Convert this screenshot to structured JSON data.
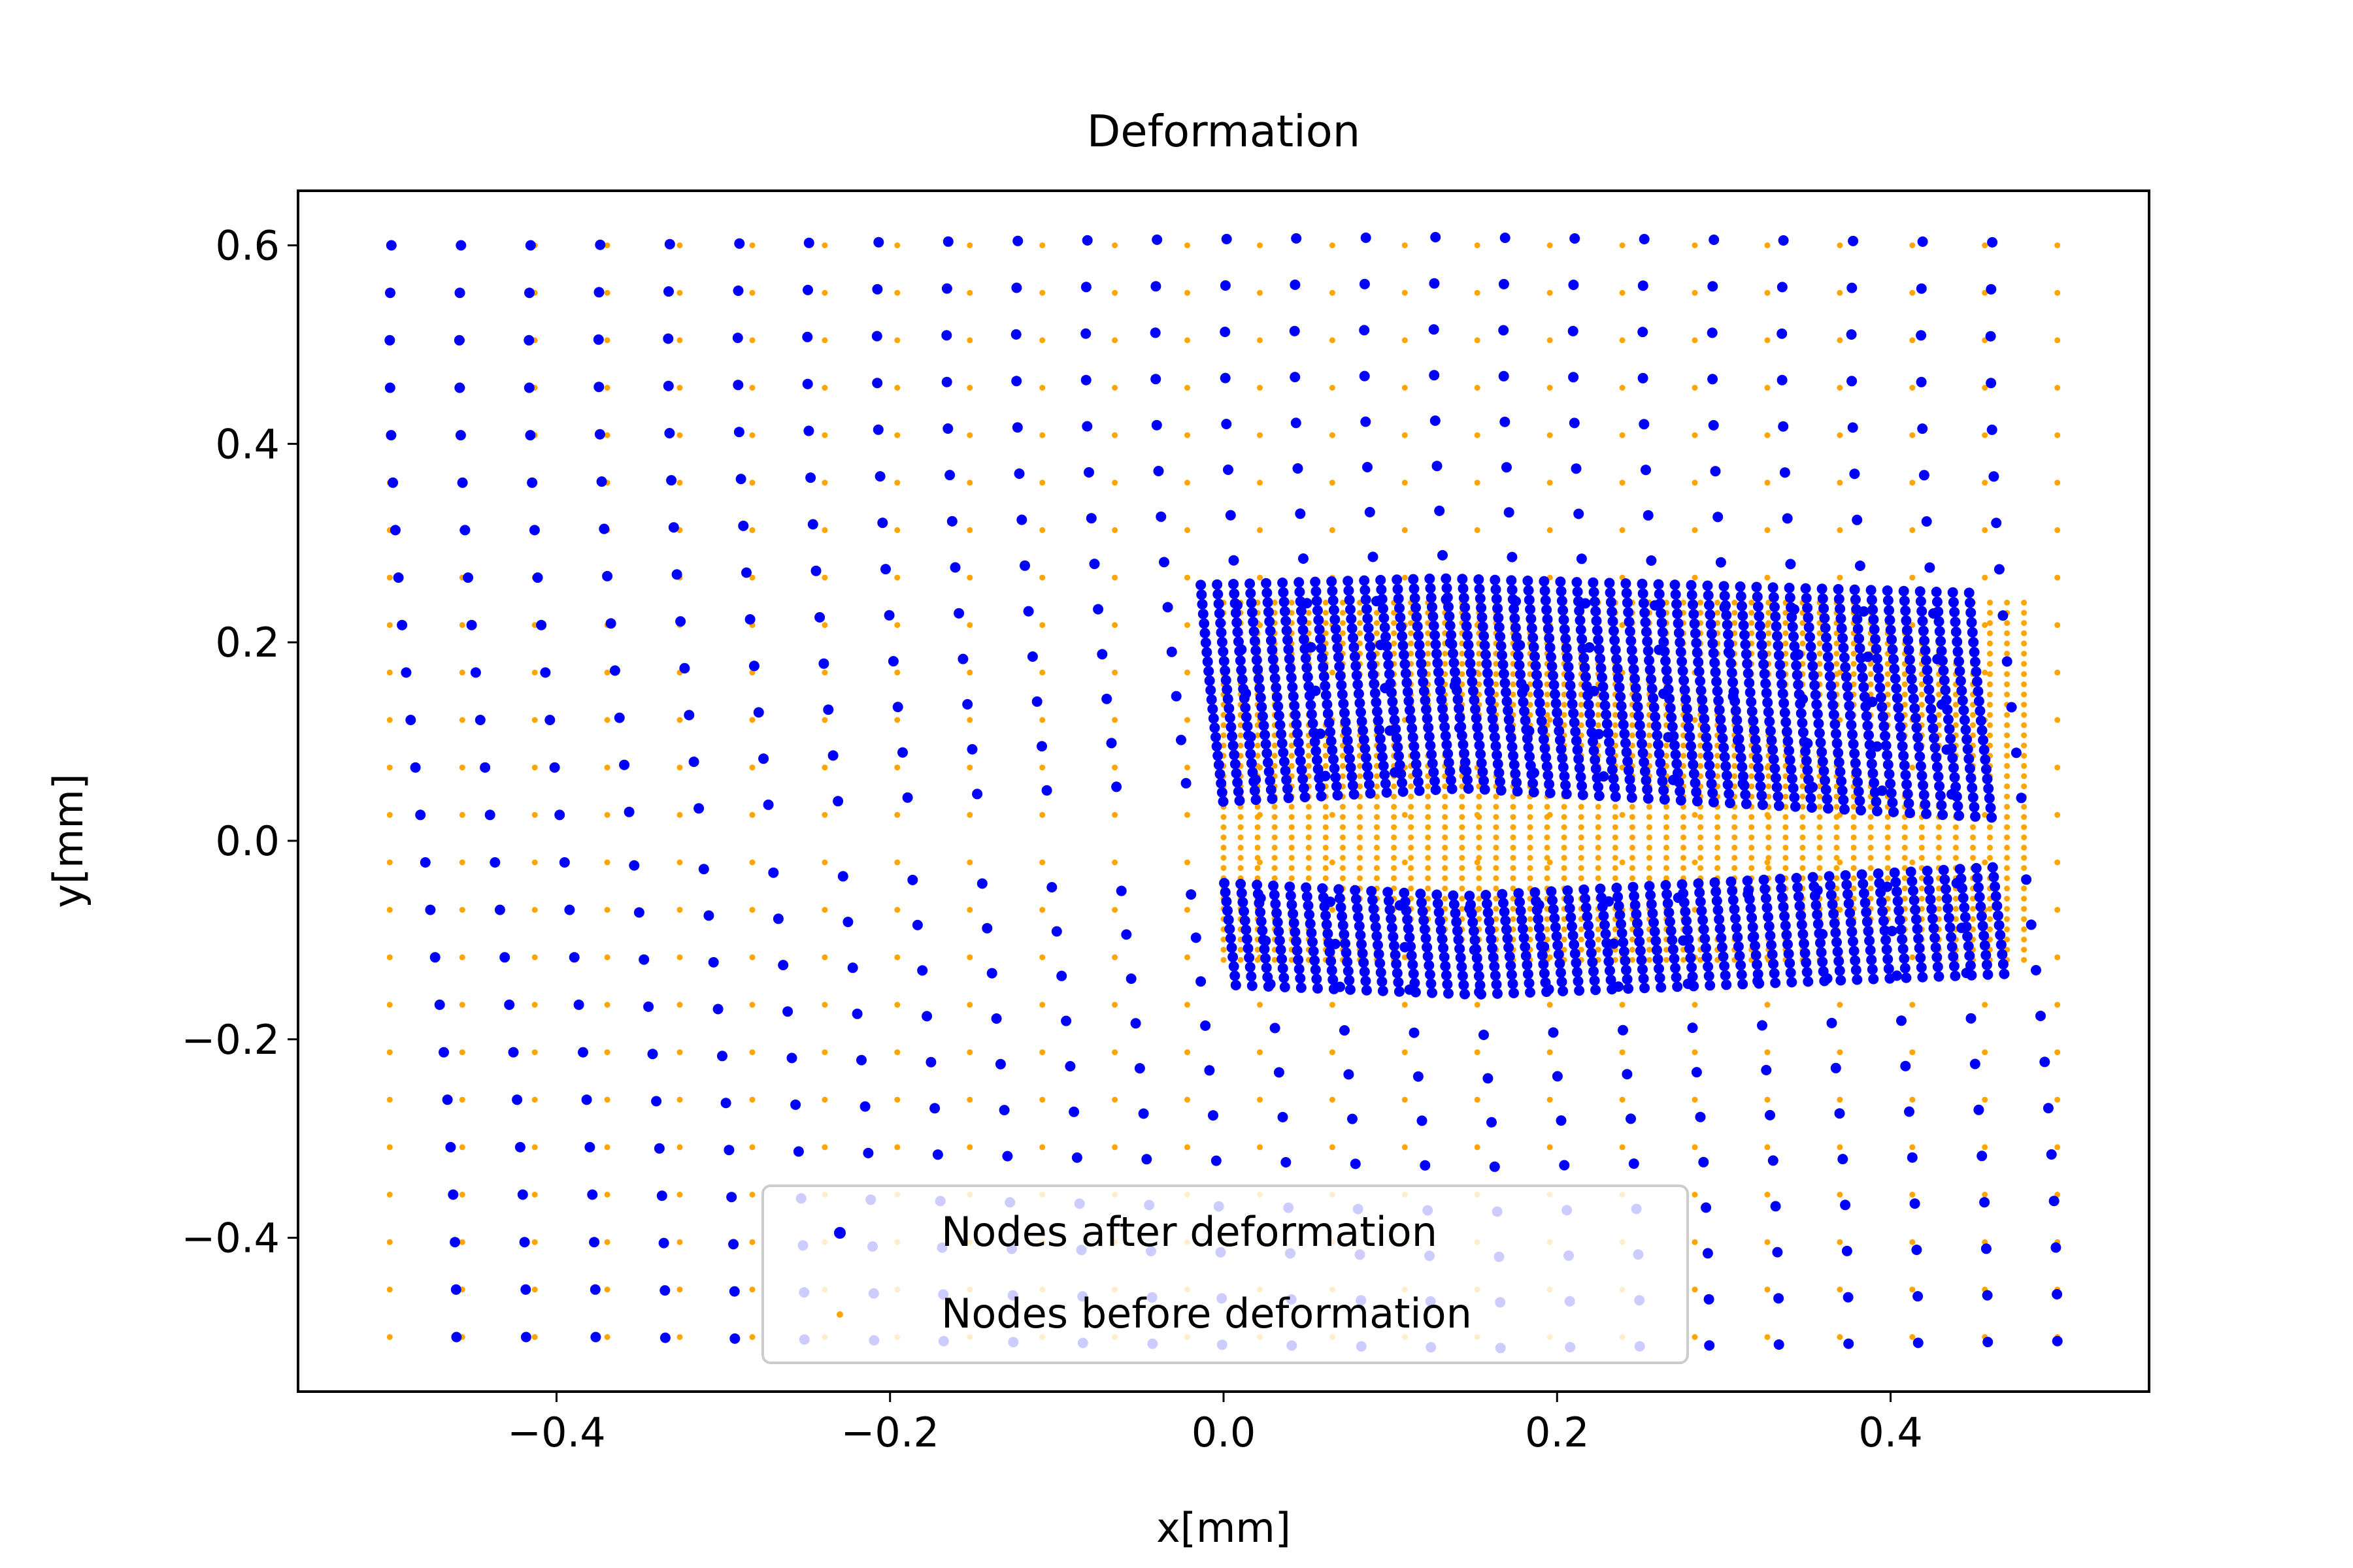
{
  "chart_data": {
    "type": "scatter",
    "title": "Deformation",
    "xlabel": "x[mm]",
    "ylabel": "y[mm]",
    "xlim": [
      -0.555,
      0.555
    ],
    "ylim": [
      -0.555,
      0.655
    ],
    "xticks": [
      {
        "value": -0.4,
        "label": "−0.4"
      },
      {
        "value": -0.2,
        "label": "−0.2"
      },
      {
        "value": 0.0,
        "label": "0.0"
      },
      {
        "value": 0.2,
        "label": "0.2"
      },
      {
        "value": 0.4,
        "label": "0.4"
      }
    ],
    "yticks": [
      {
        "value": -0.4,
        "label": "−0.4"
      },
      {
        "value": -0.2,
        "label": "−0.2"
      },
      {
        "value": 0.0,
        "label": "0.0"
      },
      {
        "value": 0.2,
        "label": "0.2"
      },
      {
        "value": 0.4,
        "label": "0.4"
      },
      {
        "value": 0.6,
        "label": "0.6"
      }
    ],
    "grid": false,
    "legend_position": "lower-center",
    "grid_spec": {
      "x_start": -0.5,
      "x_end": 0.5,
      "x_count": 24,
      "y_start": -0.5,
      "y_end": 0.6,
      "y_count": 24,
      "dense_x_start": 0.0,
      "dense_x_end": 0.48,
      "dense_x_count": 48,
      "dense_y_start": -0.12,
      "dense_y_end": 0.24,
      "dense_y_count": 36
    },
    "series": [
      {
        "name": "Nodes after deformation",
        "color": "#0000ff",
        "marker": "large-dot"
      },
      {
        "name": "Nodes before deformation",
        "color": "#ffa500",
        "marker": "small-dot"
      }
    ]
  }
}
